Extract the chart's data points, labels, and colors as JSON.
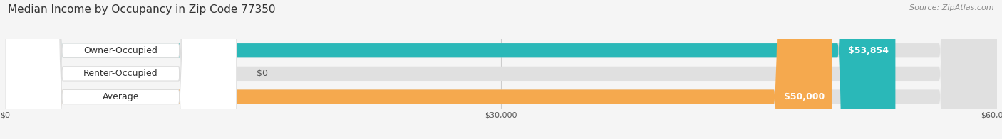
{
  "title": "Median Income by Occupancy in Zip Code 77350",
  "source": "Source: ZipAtlas.com",
  "categories": [
    "Owner-Occupied",
    "Renter-Occupied",
    "Average"
  ],
  "values": [
    53854,
    0,
    50000
  ],
  "bar_colors": [
    "#2ab8b8",
    "#c9a8d4",
    "#f5a94e"
  ],
  "value_labels": [
    "$53,854",
    "$0",
    "$50,000"
  ],
  "xlim": [
    0,
    60000
  ],
  "xticks": [
    0,
    30000,
    60000
  ],
  "xtick_labels": [
    "$0",
    "$30,000",
    "$60,000"
  ],
  "bg_color": "#f5f5f5",
  "bar_bg_color": "#e0e0e0",
  "title_fontsize": 11,
  "source_fontsize": 8,
  "label_fontsize": 9,
  "value_fontsize": 9,
  "tick_fontsize": 8,
  "figwidth": 14.06,
  "figheight": 1.96,
  "dpi": 100
}
